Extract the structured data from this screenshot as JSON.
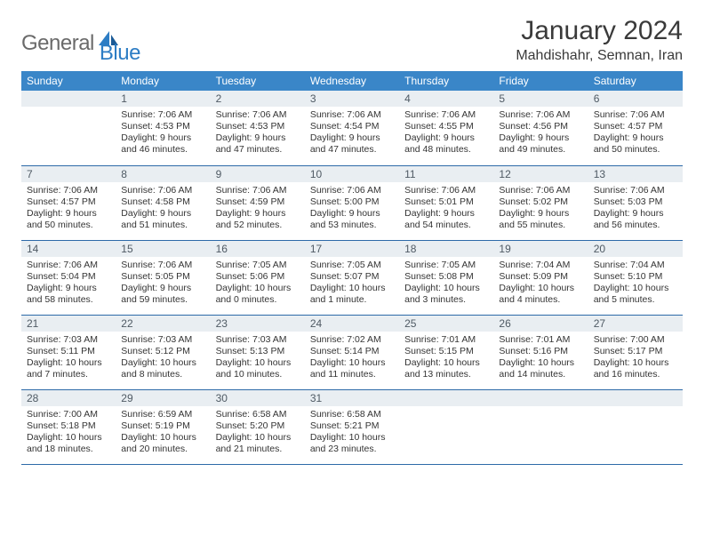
{
  "logo": {
    "general": "General",
    "blue": "Blue"
  },
  "title": "January 2024",
  "location": "Mahdishahr, Semnan, Iran",
  "colors": {
    "header_bg": "#3a86c8",
    "header_text": "#ffffff",
    "daynum_bg": "#e9eef2",
    "daynum_text": "#4f5a64",
    "rule": "#2d6aa8",
    "logo_gray": "#6a6a6a",
    "logo_blue": "#2d7dc4"
  },
  "day_headers": [
    "Sunday",
    "Monday",
    "Tuesday",
    "Wednesday",
    "Thursday",
    "Friday",
    "Saturday"
  ],
  "weeks": [
    [
      {
        "empty": true
      },
      {
        "n": "1",
        "sr": "Sunrise: 7:06 AM",
        "ss": "Sunset: 4:53 PM",
        "d1": "Daylight: 9 hours",
        "d2": "and 46 minutes."
      },
      {
        "n": "2",
        "sr": "Sunrise: 7:06 AM",
        "ss": "Sunset: 4:53 PM",
        "d1": "Daylight: 9 hours",
        "d2": "and 47 minutes."
      },
      {
        "n": "3",
        "sr": "Sunrise: 7:06 AM",
        "ss": "Sunset: 4:54 PM",
        "d1": "Daylight: 9 hours",
        "d2": "and 47 minutes."
      },
      {
        "n": "4",
        "sr": "Sunrise: 7:06 AM",
        "ss": "Sunset: 4:55 PM",
        "d1": "Daylight: 9 hours",
        "d2": "and 48 minutes."
      },
      {
        "n": "5",
        "sr": "Sunrise: 7:06 AM",
        "ss": "Sunset: 4:56 PM",
        "d1": "Daylight: 9 hours",
        "d2": "and 49 minutes."
      },
      {
        "n": "6",
        "sr": "Sunrise: 7:06 AM",
        "ss": "Sunset: 4:57 PM",
        "d1": "Daylight: 9 hours",
        "d2": "and 50 minutes."
      }
    ],
    [
      {
        "n": "7",
        "sr": "Sunrise: 7:06 AM",
        "ss": "Sunset: 4:57 PM",
        "d1": "Daylight: 9 hours",
        "d2": "and 50 minutes."
      },
      {
        "n": "8",
        "sr": "Sunrise: 7:06 AM",
        "ss": "Sunset: 4:58 PM",
        "d1": "Daylight: 9 hours",
        "d2": "and 51 minutes."
      },
      {
        "n": "9",
        "sr": "Sunrise: 7:06 AM",
        "ss": "Sunset: 4:59 PM",
        "d1": "Daylight: 9 hours",
        "d2": "and 52 minutes."
      },
      {
        "n": "10",
        "sr": "Sunrise: 7:06 AM",
        "ss": "Sunset: 5:00 PM",
        "d1": "Daylight: 9 hours",
        "d2": "and 53 minutes."
      },
      {
        "n": "11",
        "sr": "Sunrise: 7:06 AM",
        "ss": "Sunset: 5:01 PM",
        "d1": "Daylight: 9 hours",
        "d2": "and 54 minutes."
      },
      {
        "n": "12",
        "sr": "Sunrise: 7:06 AM",
        "ss": "Sunset: 5:02 PM",
        "d1": "Daylight: 9 hours",
        "d2": "and 55 minutes."
      },
      {
        "n": "13",
        "sr": "Sunrise: 7:06 AM",
        "ss": "Sunset: 5:03 PM",
        "d1": "Daylight: 9 hours",
        "d2": "and 56 minutes."
      }
    ],
    [
      {
        "n": "14",
        "sr": "Sunrise: 7:06 AM",
        "ss": "Sunset: 5:04 PM",
        "d1": "Daylight: 9 hours",
        "d2": "and 58 minutes."
      },
      {
        "n": "15",
        "sr": "Sunrise: 7:06 AM",
        "ss": "Sunset: 5:05 PM",
        "d1": "Daylight: 9 hours",
        "d2": "and 59 minutes."
      },
      {
        "n": "16",
        "sr": "Sunrise: 7:05 AM",
        "ss": "Sunset: 5:06 PM",
        "d1": "Daylight: 10 hours",
        "d2": "and 0 minutes."
      },
      {
        "n": "17",
        "sr": "Sunrise: 7:05 AM",
        "ss": "Sunset: 5:07 PM",
        "d1": "Daylight: 10 hours",
        "d2": "and 1 minute."
      },
      {
        "n": "18",
        "sr": "Sunrise: 7:05 AM",
        "ss": "Sunset: 5:08 PM",
        "d1": "Daylight: 10 hours",
        "d2": "and 3 minutes."
      },
      {
        "n": "19",
        "sr": "Sunrise: 7:04 AM",
        "ss": "Sunset: 5:09 PM",
        "d1": "Daylight: 10 hours",
        "d2": "and 4 minutes."
      },
      {
        "n": "20",
        "sr": "Sunrise: 7:04 AM",
        "ss": "Sunset: 5:10 PM",
        "d1": "Daylight: 10 hours",
        "d2": "and 5 minutes."
      }
    ],
    [
      {
        "n": "21",
        "sr": "Sunrise: 7:03 AM",
        "ss": "Sunset: 5:11 PM",
        "d1": "Daylight: 10 hours",
        "d2": "and 7 minutes."
      },
      {
        "n": "22",
        "sr": "Sunrise: 7:03 AM",
        "ss": "Sunset: 5:12 PM",
        "d1": "Daylight: 10 hours",
        "d2": "and 8 minutes."
      },
      {
        "n": "23",
        "sr": "Sunrise: 7:03 AM",
        "ss": "Sunset: 5:13 PM",
        "d1": "Daylight: 10 hours",
        "d2": "and 10 minutes."
      },
      {
        "n": "24",
        "sr": "Sunrise: 7:02 AM",
        "ss": "Sunset: 5:14 PM",
        "d1": "Daylight: 10 hours",
        "d2": "and 11 minutes."
      },
      {
        "n": "25",
        "sr": "Sunrise: 7:01 AM",
        "ss": "Sunset: 5:15 PM",
        "d1": "Daylight: 10 hours",
        "d2": "and 13 minutes."
      },
      {
        "n": "26",
        "sr": "Sunrise: 7:01 AM",
        "ss": "Sunset: 5:16 PM",
        "d1": "Daylight: 10 hours",
        "d2": "and 14 minutes."
      },
      {
        "n": "27",
        "sr": "Sunrise: 7:00 AM",
        "ss": "Sunset: 5:17 PM",
        "d1": "Daylight: 10 hours",
        "d2": "and 16 minutes."
      }
    ],
    [
      {
        "n": "28",
        "sr": "Sunrise: 7:00 AM",
        "ss": "Sunset: 5:18 PM",
        "d1": "Daylight: 10 hours",
        "d2": "and 18 minutes."
      },
      {
        "n": "29",
        "sr": "Sunrise: 6:59 AM",
        "ss": "Sunset: 5:19 PM",
        "d1": "Daylight: 10 hours",
        "d2": "and 20 minutes."
      },
      {
        "n": "30",
        "sr": "Sunrise: 6:58 AM",
        "ss": "Sunset: 5:20 PM",
        "d1": "Daylight: 10 hours",
        "d2": "and 21 minutes."
      },
      {
        "n": "31",
        "sr": "Sunrise: 6:58 AM",
        "ss": "Sunset: 5:21 PM",
        "d1": "Daylight: 10 hours",
        "d2": "and 23 minutes."
      },
      {
        "empty": true
      },
      {
        "empty": true
      },
      {
        "empty": true
      }
    ]
  ]
}
